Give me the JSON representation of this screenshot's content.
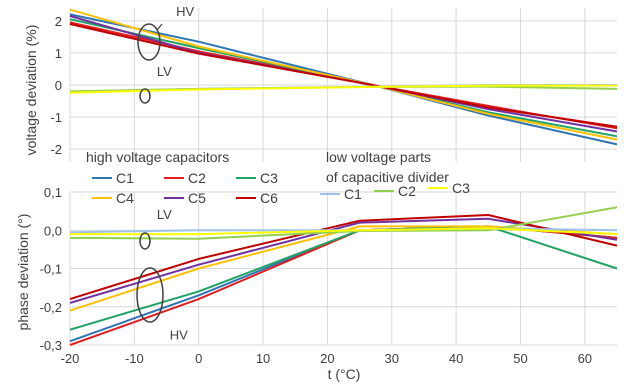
{
  "chart_data": [
    {
      "type": "line",
      "ylabel": "voltage deviation (%)",
      "xlim": [
        -20,
        65
      ],
      "ylim": [
        -2.4,
        2.4
      ],
      "y_ticks": [
        {
          "value": 2,
          "label": "2"
        },
        {
          "value": 1,
          "label": "1"
        },
        {
          "value": 0,
          "label": "0"
        },
        {
          "value": -1,
          "label": "-1"
        },
        {
          "value": -2,
          "label": "-2"
        }
      ],
      "grid": true,
      "annotations": [
        {
          "text": "HV",
          "x": -3.5,
          "y": 2.15
        },
        {
          "text": "LV",
          "x": -6.5,
          "y": 0.28
        }
      ],
      "series": [
        {
          "name": "C1",
          "group": "hv",
          "color": "#2E75B6",
          "x": [
            -20,
            0,
            27,
            45,
            65
          ],
          "y": [
            2.2,
            1.35,
            0.0,
            -0.95,
            -1.85
          ]
        },
        {
          "name": "C2",
          "group": "hv",
          "color": "#E02020",
          "x": [
            -20,
            0,
            27,
            45,
            65
          ],
          "y": [
            1.95,
            1.05,
            0.0,
            -0.65,
            -1.35
          ]
        },
        {
          "name": "C3",
          "group": "hv",
          "color": "#21A366",
          "x": [
            -20,
            0,
            27,
            45,
            65
          ],
          "y": [
            2.05,
            1.15,
            0.0,
            -0.85,
            -1.6
          ]
        },
        {
          "name": "C4",
          "group": "hv",
          "color": "#FFC000",
          "x": [
            -20,
            0,
            27,
            45,
            65
          ],
          "y": [
            2.35,
            1.2,
            0.0,
            -0.9,
            -1.7
          ]
        },
        {
          "name": "C5",
          "group": "hv",
          "color": "#7030A0",
          "x": [
            -20,
            0,
            27,
            45,
            65
          ],
          "y": [
            2.15,
            1.0,
            0.0,
            -0.75,
            -1.45
          ]
        },
        {
          "name": "C6",
          "group": "hv",
          "color": "#C00000",
          "x": [
            -20,
            0,
            27,
            45,
            65
          ],
          "y": [
            1.9,
            0.98,
            0.0,
            -0.7,
            -1.3
          ]
        },
        {
          "name": "C1",
          "group": "lv",
          "color": "#9DC3E6",
          "x": [
            -20,
            0,
            27,
            45,
            65
          ],
          "y": [
            -0.22,
            -0.12,
            -0.05,
            0.0,
            0.0
          ]
        },
        {
          "name": "C2",
          "group": "lv",
          "color": "#92D050",
          "x": [
            -20,
            0,
            27,
            45,
            65
          ],
          "y": [
            -0.2,
            -0.12,
            -0.06,
            -0.05,
            -0.12
          ]
        },
        {
          "name": "C3",
          "group": "lv",
          "color": "#FFFF00",
          "x": [
            -20,
            0,
            27,
            45,
            65
          ],
          "y": [
            -0.24,
            -0.14,
            -0.06,
            -0.02,
            -0.02
          ]
        }
      ]
    },
    {
      "type": "line",
      "xlabel": "t (°C)",
      "ylabel": "phase deviation (°)",
      "xlim": [
        -20,
        65
      ],
      "ylim": [
        -0.3,
        0.1
      ],
      "x_ticks": [
        {
          "value": -20,
          "label": "-20"
        },
        {
          "value": -10,
          "label": "-10"
        },
        {
          "value": 0,
          "label": "0"
        },
        {
          "value": 10,
          "label": "10"
        },
        {
          "value": 20,
          "label": "20"
        },
        {
          "value": 30,
          "label": "30"
        },
        {
          "value": 40,
          "label": "40"
        },
        {
          "value": 50,
          "label": "50"
        },
        {
          "value": 60,
          "label": "60"
        }
      ],
      "y_ticks": [
        {
          "value": 0.1,
          "label": "0,1"
        },
        {
          "value": 0.0,
          "label": "0,0"
        },
        {
          "value": -0.1,
          "label": "-0,1"
        },
        {
          "value": -0.2,
          "label": "-0,2"
        },
        {
          "value": -0.3,
          "label": "-0,3"
        }
      ],
      "grid": true,
      "annotations": [
        {
          "text": "LV",
          "x": -6.5,
          "y": 0.03
        },
        {
          "text": "HV",
          "x": -4.5,
          "y": -0.285
        }
      ],
      "series": [
        {
          "name": "C1",
          "group": "hv",
          "color": "#2E75B6",
          "x": [
            -20,
            0,
            25,
            45,
            65
          ],
          "y": [
            -0.29,
            -0.17,
            0.0,
            0.01,
            -0.02
          ]
        },
        {
          "name": "C2",
          "group": "hv",
          "color": "#E02020",
          "x": [
            -20,
            0,
            25,
            45,
            65
          ],
          "y": [
            -0.3,
            -0.18,
            0.0,
            0.01,
            -0.02
          ]
        },
        {
          "name": "C3",
          "group": "hv",
          "color": "#21A366",
          "x": [
            -20,
            0,
            25,
            45,
            65
          ],
          "y": [
            -0.26,
            -0.16,
            0.0,
            0.01,
            -0.1
          ]
        },
        {
          "name": "C4",
          "group": "hv",
          "color": "#FFC000",
          "x": [
            -20,
            0,
            25,
            45,
            65
          ],
          "y": [
            -0.21,
            -0.1,
            0.01,
            0.01,
            -0.01
          ]
        },
        {
          "name": "C5",
          "group": "hv",
          "color": "#7030A0",
          "x": [
            -20,
            0,
            25,
            45,
            65
          ],
          "y": [
            -0.19,
            -0.09,
            0.02,
            0.03,
            -0.025
          ]
        },
        {
          "name": "C6",
          "group": "hv",
          "color": "#C00000",
          "x": [
            -20,
            0,
            25,
            45,
            65
          ],
          "y": [
            -0.18,
            -0.075,
            0.025,
            0.04,
            -0.04
          ]
        },
        {
          "name": "C1",
          "group": "lv",
          "color": "#9DC3E6",
          "x": [
            -20,
            0,
            25,
            45,
            65
          ],
          "y": [
            -0.005,
            0.0,
            0.0,
            0.005,
            0.0
          ]
        },
        {
          "name": "C2",
          "group": "lv",
          "color": "#92D050",
          "x": [
            -20,
            0,
            25,
            45,
            65
          ],
          "y": [
            -0.02,
            -0.022,
            -0.002,
            0.0,
            0.06
          ]
        },
        {
          "name": "C3",
          "group": "lv",
          "color": "#FFFF00",
          "x": [
            -20,
            0,
            25,
            45,
            65
          ],
          "y": [
            -0.01,
            -0.01,
            0.0,
            0.005,
            -0.01
          ]
        }
      ]
    }
  ],
  "legend": {
    "hv_title": "high voltage capacitors",
    "lv_title_line1": "low voltage parts",
    "lv_title_line2": "of capacitive divider",
    "hv_entries": [
      {
        "label": "C1",
        "color": "#2E75B6"
      },
      {
        "label": "C2",
        "color": "#E02020"
      },
      {
        "label": "C3",
        "color": "#21A366"
      },
      {
        "label": "C4",
        "color": "#FFC000"
      },
      {
        "label": "C5",
        "color": "#7030A0"
      },
      {
        "label": "C6",
        "color": "#C00000"
      }
    ],
    "lv_entries": [
      {
        "label": "C1",
        "color": "#9DC3E6"
      },
      {
        "label": "C2",
        "color": "#92D050"
      },
      {
        "label": "C3",
        "color": "#FFFF00"
      }
    ]
  }
}
